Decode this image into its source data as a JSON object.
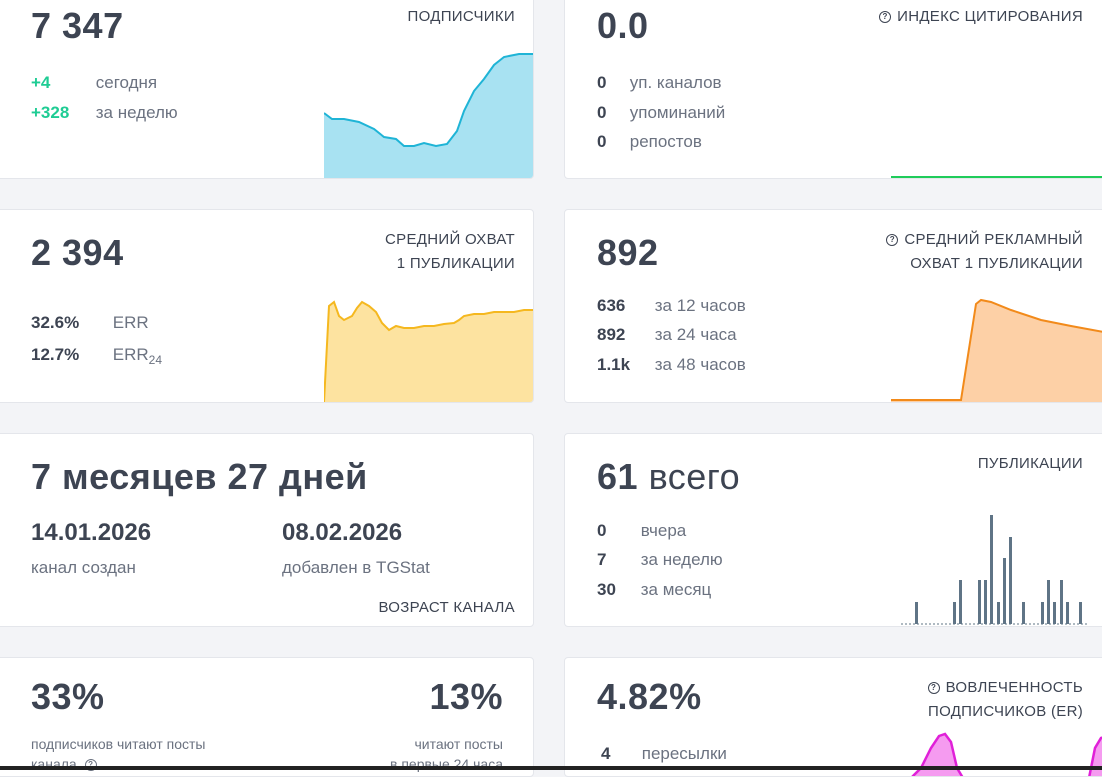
{
  "subscribers": {
    "value": "7 347",
    "label": "ПОДПИСЧИКИ",
    "rows": [
      {
        "num": "+4",
        "txt": "сегодня"
      },
      {
        "num": "+328",
        "txt": "за неделю"
      }
    ],
    "colors": {
      "line": "#1fb4d6",
      "fill": "#a8e2f2"
    }
  },
  "citation": {
    "value": "0.0",
    "label": "ИНДЕКС ЦИТИРОВАНИЯ",
    "rows": [
      {
        "num": "0",
        "txt": "уп. каналов"
      },
      {
        "num": "0",
        "txt": "упоминаний"
      },
      {
        "num": "0",
        "txt": "репостов"
      }
    ],
    "colors": {
      "line": "#1fcc5a"
    }
  },
  "reach": {
    "value": "2 394",
    "label_line1": "СРЕДНИЙ ОХВАТ",
    "label_line2": "1 ПУБЛИКАЦИИ",
    "rows": [
      {
        "num": "32.6%",
        "txt": "ERR",
        "sub": ""
      },
      {
        "num": "12.7%",
        "txt": "ERR",
        "sub": "24"
      }
    ],
    "colors": {
      "line": "#f5b81f",
      "fill": "#fde3a0"
    }
  },
  "ad_reach": {
    "value": "892",
    "label_line1": "СРЕДНИЙ РЕКЛАМНЫЙ",
    "label_line2": "ОХВАТ 1 ПУБЛИКАЦИИ",
    "rows": [
      {
        "num": "636",
        "txt": "за 12 часов"
      },
      {
        "num": "892",
        "txt": "за 24 часа"
      },
      {
        "num": "1.1k",
        "txt": "за 48 часов"
      }
    ],
    "colors": {
      "line": "#f28a1a",
      "fill": "#fdd0a6"
    }
  },
  "age": {
    "value": "7 месяцев 27 дней",
    "label": "ВОЗРАСТ КАНАЛА",
    "created_date": "14.01.2026",
    "created_label": "канал создан",
    "added_date": "08.02.2026",
    "added_label": "добавлен в TGStat"
  },
  "posts": {
    "value_num": "61",
    "value_word": "всего",
    "label": "ПУБЛИКАЦИИ",
    "rows": [
      {
        "num": "0",
        "txt": "вчера"
      },
      {
        "num": "7",
        "txt": "за неделю"
      },
      {
        "num": "30",
        "txt": "за месяц"
      }
    ],
    "colors": {
      "bar": "#5f7486"
    }
  },
  "readers": {
    "left_value": "33%",
    "left_text_1": "подписчиков читают посты",
    "left_text_2": "канала",
    "right_value": "13%",
    "right_text_1": "читают посты",
    "right_text_2": "в первые 24 часа"
  },
  "engagement": {
    "value": "4.82%",
    "label_line1": "ВОВЛЕЧЕННОСТЬ",
    "label_line2": "ПОДПИСЧИКОВ (ER)",
    "rows": [
      {
        "num": "4",
        "txt": "пересылки"
      }
    ],
    "colors": {
      "line": "#e020d8",
      "fill": "#f59bf0"
    }
  }
}
